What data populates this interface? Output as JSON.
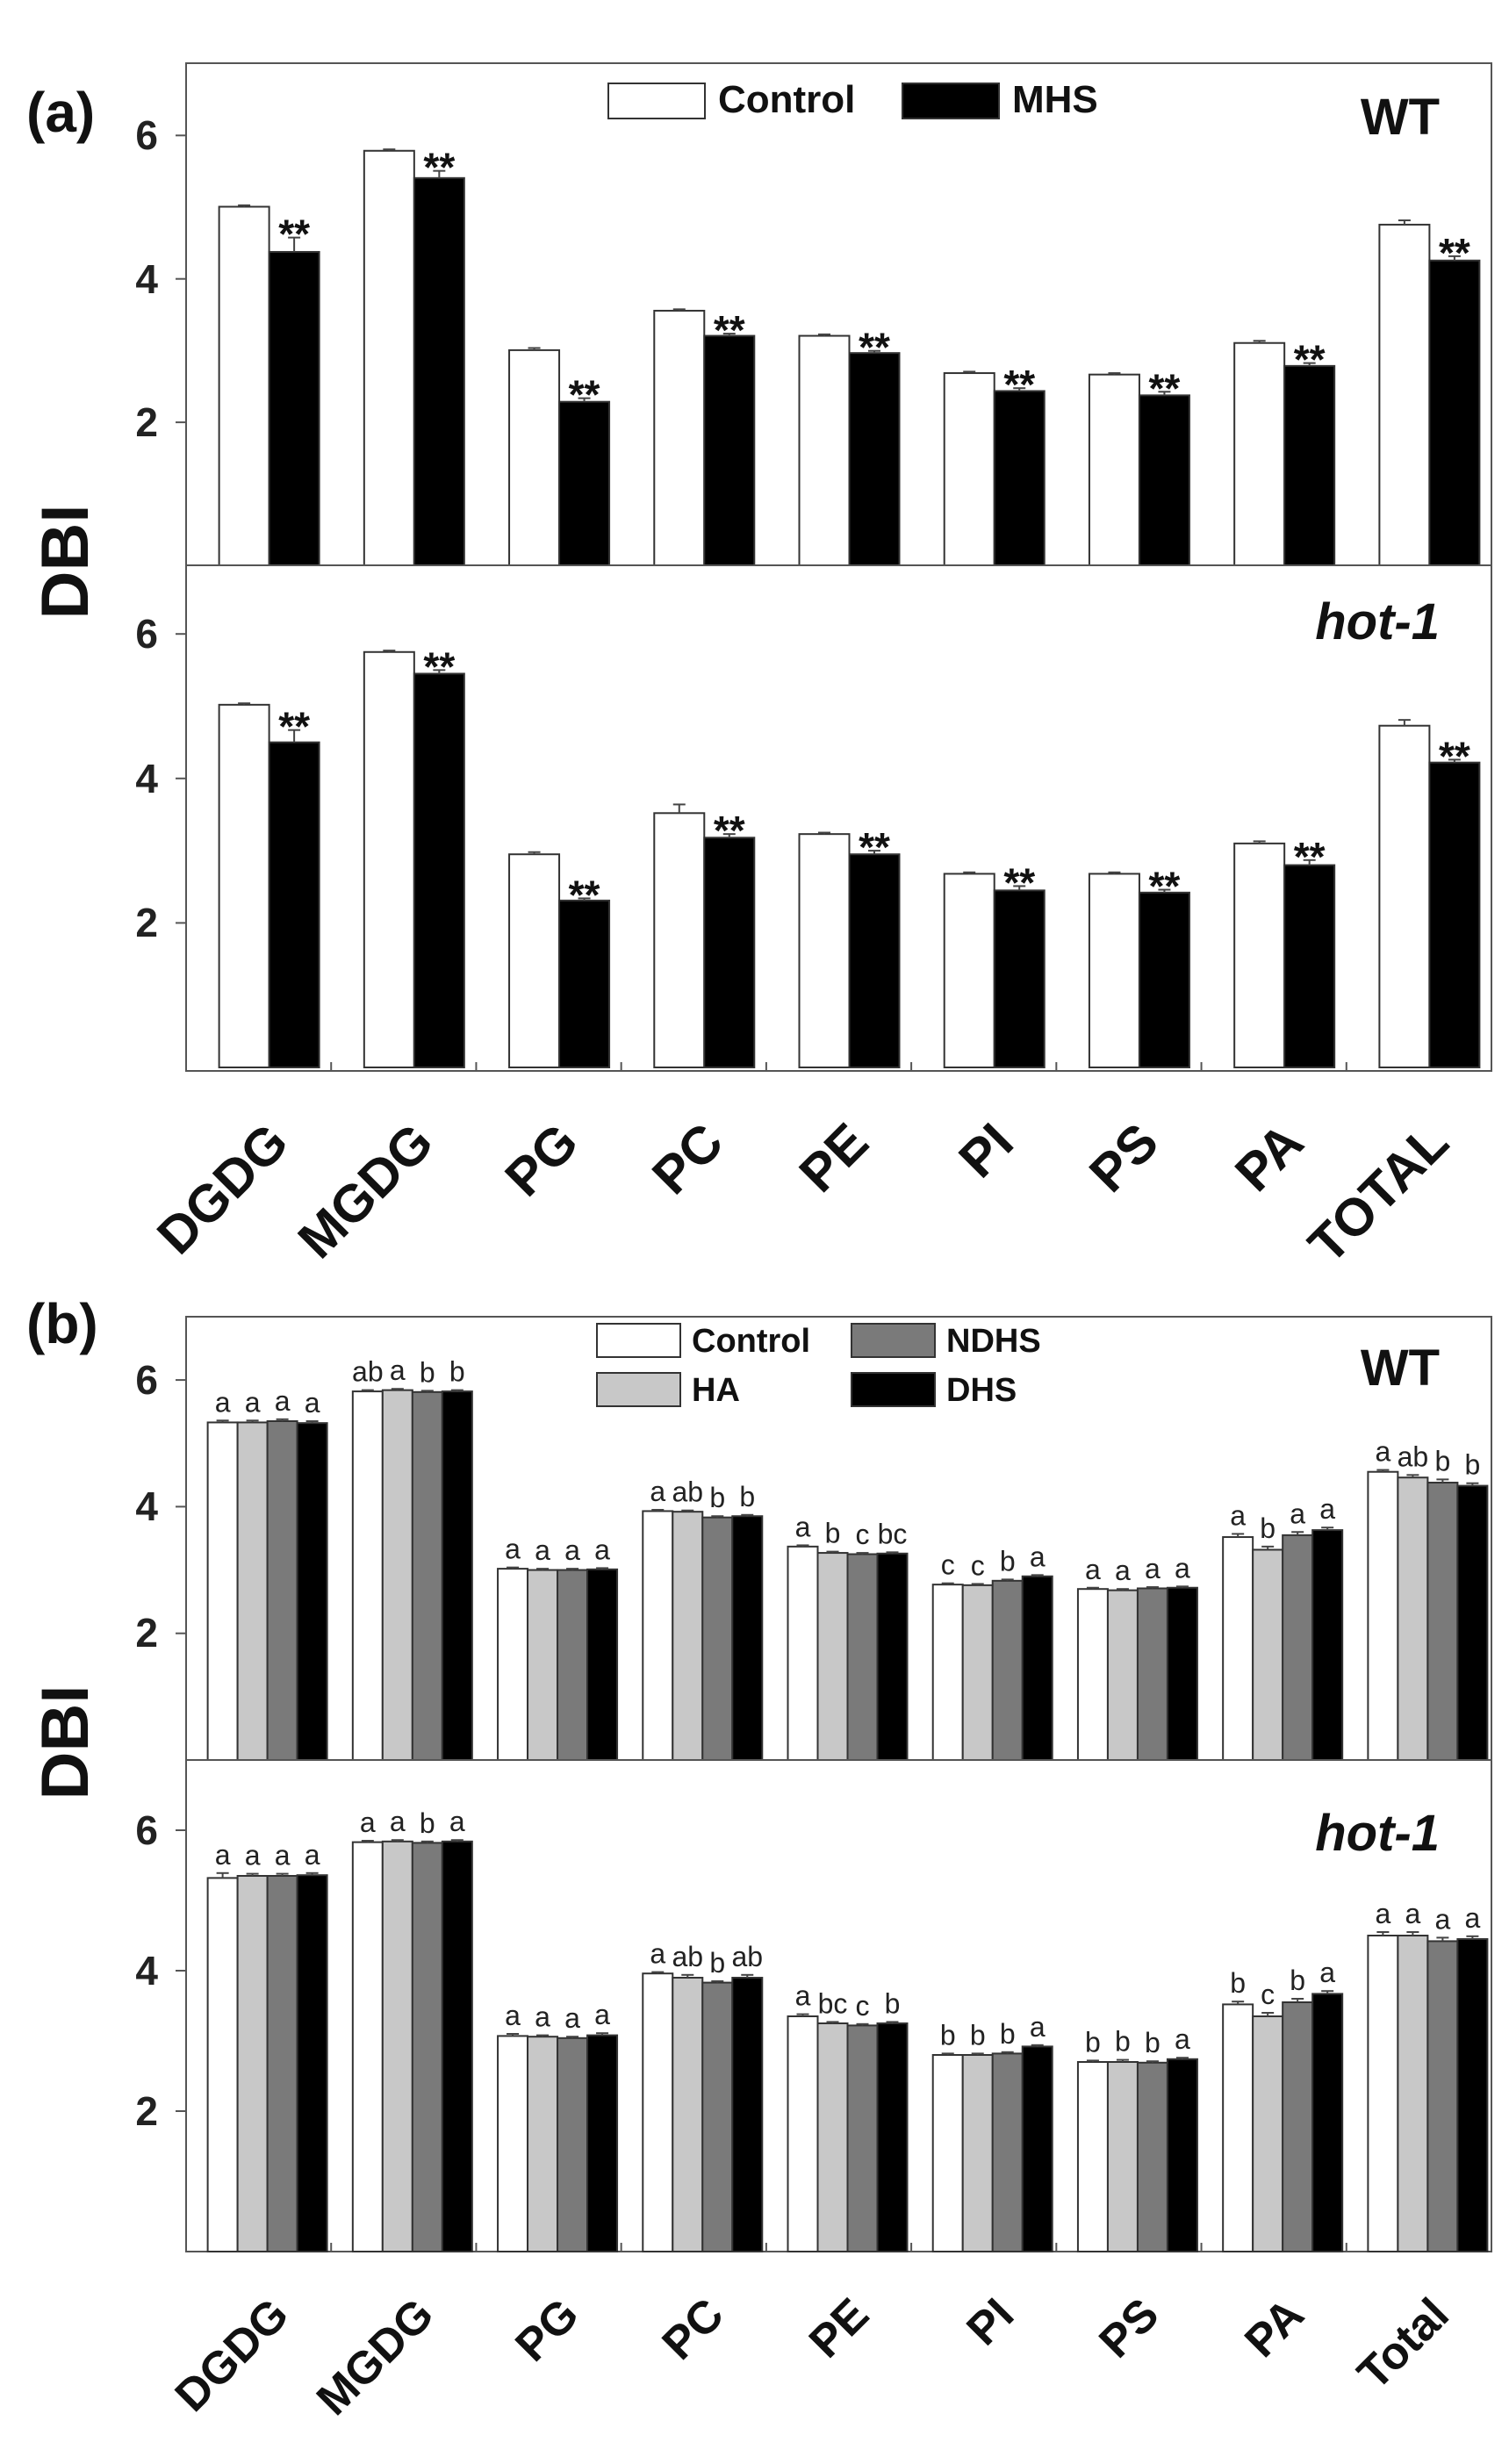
{
  "chart_data": [
    {
      "panel": "(a)",
      "type": "bar",
      "ylabel": "DBI",
      "categories": [
        "DGDG",
        "MGDG",
        "PG",
        "PC",
        "PE",
        "PI",
        "PS",
        "PA",
        "TOTAL"
      ],
      "ylim": [
        0,
        7
      ],
      "yticks": [
        "2",
        "4",
        "6"
      ],
      "legend": [
        {
          "name": "Control",
          "color": "#ffffff"
        },
        {
          "name": "MHS",
          "color": "#000000"
        }
      ],
      "subplots": [
        {
          "genotype": "WT",
          "italic": false,
          "series": [
            {
              "name": "Control",
              "color": "#ffffff",
              "values": [
                5.0,
                5.78,
                3.0,
                3.55,
                3.2,
                2.68,
                2.66,
                3.1,
                4.75
              ],
              "errors": [
                0.02,
                0.02,
                0.03,
                0.02,
                0.02,
                0.02,
                0.02,
                0.03,
                0.06
              ]
            },
            {
              "name": "MHS",
              "color": "#000000",
              "values": [
                4.37,
                5.4,
                2.28,
                3.2,
                2.96,
                2.43,
                2.37,
                2.78,
                4.25
              ],
              "errors": [
                0.2,
                0.1,
                0.05,
                0.03,
                0.03,
                0.04,
                0.05,
                0.04,
                0.06
              ]
            }
          ],
          "annotations": [
            "**",
            "**",
            "**",
            "**",
            "**",
            "**",
            "**",
            "**",
            "**"
          ]
        },
        {
          "genotype": "hot-1",
          "italic": true,
          "series": [
            {
              "name": "Control",
              "color": "#ffffff",
              "values": [
                5.02,
                5.75,
                2.95,
                3.52,
                3.23,
                2.68,
                2.68,
                3.1,
                4.73
              ],
              "errors": [
                0.02,
                0.02,
                0.03,
                0.12,
                0.02,
                0.02,
                0.02,
                0.03,
                0.08
              ]
            },
            {
              "name": "MHS",
              "color": "#000000",
              "values": [
                4.5,
                5.45,
                2.31,
                3.18,
                2.95,
                2.45,
                2.42,
                2.8,
                4.22
              ],
              "errors": [
                0.17,
                0.05,
                0.03,
                0.05,
                0.05,
                0.06,
                0.04,
                0.07,
                0.04
              ]
            }
          ],
          "annotations": [
            "**",
            "**",
            "**",
            "**",
            "**",
            "**",
            "**",
            "**",
            "**"
          ]
        }
      ]
    },
    {
      "panel": "(b)",
      "type": "bar",
      "ylabel": "DBI",
      "categories": [
        "DGDG",
        "MGDG",
        "PG",
        "PC",
        "PE",
        "PI",
        "PS",
        "PA",
        "Total"
      ],
      "ylim": [
        0,
        7
      ],
      "yticks": [
        "2",
        "4",
        "6"
      ],
      "legend": [
        {
          "name": "Control",
          "color": "#ffffff"
        },
        {
          "name": "NDHS",
          "color": "#7a7a7a"
        },
        {
          "name": "HA",
          "color": "#c8c8c8"
        },
        {
          "name": "DHS",
          "color": "#000000"
        }
      ],
      "subplots": [
        {
          "genotype": "WT",
          "italic": false,
          "series": [
            {
              "name": "Control",
              "color": "#ffffff",
              "values": [
                5.33,
                5.82,
                3.02,
                3.93,
                3.37,
                2.77,
                2.7,
                3.52,
                4.55
              ],
              "errors": [
                0.03,
                0.02,
                0.02,
                0.02,
                0.02,
                0.02,
                0.02,
                0.05,
                0.03
              ]
            },
            {
              "name": "HA",
              "color": "#c8c8c8",
              "values": [
                5.33,
                5.84,
                3.0,
                3.92,
                3.27,
                2.76,
                2.68,
                3.32,
                4.46
              ],
              "errors": [
                0.03,
                0.02,
                0.02,
                0.02,
                0.02,
                0.02,
                0.02,
                0.05,
                0.04
              ]
            },
            {
              "name": "NDHS",
              "color": "#7a7a7a",
              "values": [
                5.35,
                5.81,
                3.0,
                3.83,
                3.25,
                2.83,
                2.71,
                3.55,
                4.38
              ],
              "errors": [
                0.03,
                0.02,
                0.02,
                0.02,
                0.02,
                0.02,
                0.02,
                0.05,
                0.05
              ]
            },
            {
              "name": "DHS",
              "color": "#000000",
              "values": [
                5.32,
                5.82,
                3.01,
                3.85,
                3.26,
                2.9,
                2.72,
                3.63,
                4.33
              ],
              "errors": [
                0.03,
                0.02,
                0.02,
                0.02,
                0.02,
                0.02,
                0.02,
                0.04,
                0.04
              ]
            }
          ],
          "significance": [
            [
              "a",
              "a",
              "a",
              "a"
            ],
            [
              "ab",
              "a",
              "b",
              "b"
            ],
            [
              "a",
              "a",
              "a",
              "a"
            ],
            [
              "a",
              "ab",
              "b",
              "b"
            ],
            [
              "a",
              "b",
              "c",
              "bc"
            ],
            [
              "c",
              "c",
              "b",
              "a"
            ],
            [
              "a",
              "a",
              "a",
              "a"
            ],
            [
              "a",
              "b",
              "a",
              "a"
            ],
            [
              "a",
              "ab",
              "b",
              "b"
            ]
          ]
        },
        {
          "genotype": "hot-1",
          "italic": true,
          "series": [
            {
              "name": "Control",
              "color": "#ffffff",
              "values": [
                5.32,
                5.83,
                3.07,
                3.96,
                3.35,
                2.8,
                2.7,
                3.52,
                4.5
              ],
              "errors": [
                0.07,
                0.02,
                0.03,
                0.02,
                0.03,
                0.02,
                0.02,
                0.04,
                0.05
              ]
            },
            {
              "name": "HA",
              "color": "#c8c8c8",
              "values": [
                5.35,
                5.84,
                3.06,
                3.9,
                3.25,
                2.8,
                2.7,
                3.35,
                4.5
              ],
              "errors": [
                0.03,
                0.02,
                0.02,
                0.04,
                0.02,
                0.02,
                0.03,
                0.05,
                0.05
              ]
            },
            {
              "name": "NDHS",
              "color": "#7a7a7a",
              "values": [
                5.35,
                5.82,
                3.04,
                3.83,
                3.22,
                2.82,
                2.69,
                3.55,
                4.42
              ],
              "errors": [
                0.03,
                0.02,
                0.02,
                0.02,
                0.02,
                0.02,
                0.02,
                0.05,
                0.05
              ]
            },
            {
              "name": "DHS",
              "color": "#000000",
              "values": [
                5.36,
                5.84,
                3.08,
                3.9,
                3.25,
                2.92,
                2.74,
                3.67,
                4.45
              ],
              "errors": [
                0.03,
                0.02,
                0.03,
                0.04,
                0.02,
                0.02,
                0.02,
                0.04,
                0.04
              ]
            }
          ],
          "significance": [
            [
              "a",
              "a",
              "a",
              "a"
            ],
            [
              "a",
              "a",
              "b",
              "a"
            ],
            [
              "a",
              "a",
              "a",
              "a"
            ],
            [
              "a",
              "ab",
              "b",
              "ab"
            ],
            [
              "a",
              "bc",
              "c",
              "b"
            ],
            [
              "b",
              "b",
              "b",
              "a"
            ],
            [
              "b",
              "b",
              "b",
              "a"
            ],
            [
              "b",
              "c",
              "b",
              "a"
            ],
            [
              "a",
              "a",
              "a",
              "a"
            ]
          ]
        }
      ]
    }
  ]
}
